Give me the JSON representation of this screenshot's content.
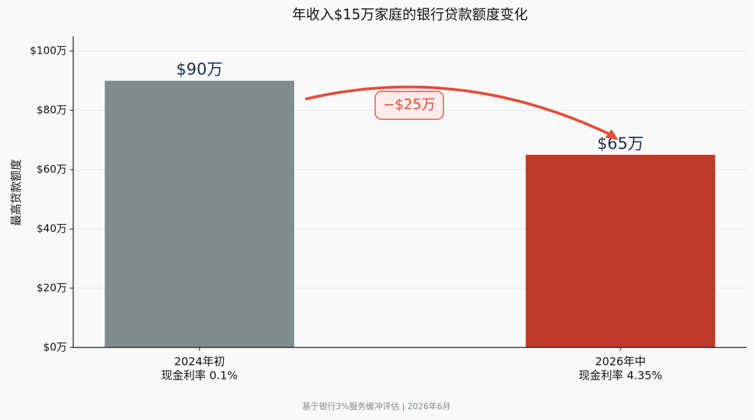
{
  "chart_data": {
    "type": "bar",
    "title": "年收入$15万家庭的银行贷款额度变化",
    "y_label": "最高贷款额度",
    "categories": [
      [
        "2024年初",
        "现金利率 0.1%"
      ],
      [
        "2026年中",
        "现金利率 4.35%"
      ]
    ],
    "values": [
      90,
      65
    ],
    "value_labels": [
      "$90万",
      "$65万"
    ],
    "colors": [
      "#7f8c8d",
      "#c0392b"
    ],
    "ylim": [
      0,
      105
    ],
    "yticks": [
      {
        "value": 0,
        "label": "$0万"
      },
      {
        "value": 20,
        "label": "$20万"
      },
      {
        "value": 40,
        "label": "$40万"
      },
      {
        "value": 60,
        "label": "$60万"
      },
      {
        "value": 80,
        "label": "$80万"
      },
      {
        "value": 100,
        "label": "$100万"
      }
    ],
    "grid": true,
    "annotation": {
      "text": "−$25万",
      "color": "#e74c3c"
    },
    "footnote": "基于银行3%服务缓冲评估 | 2026年6月"
  }
}
